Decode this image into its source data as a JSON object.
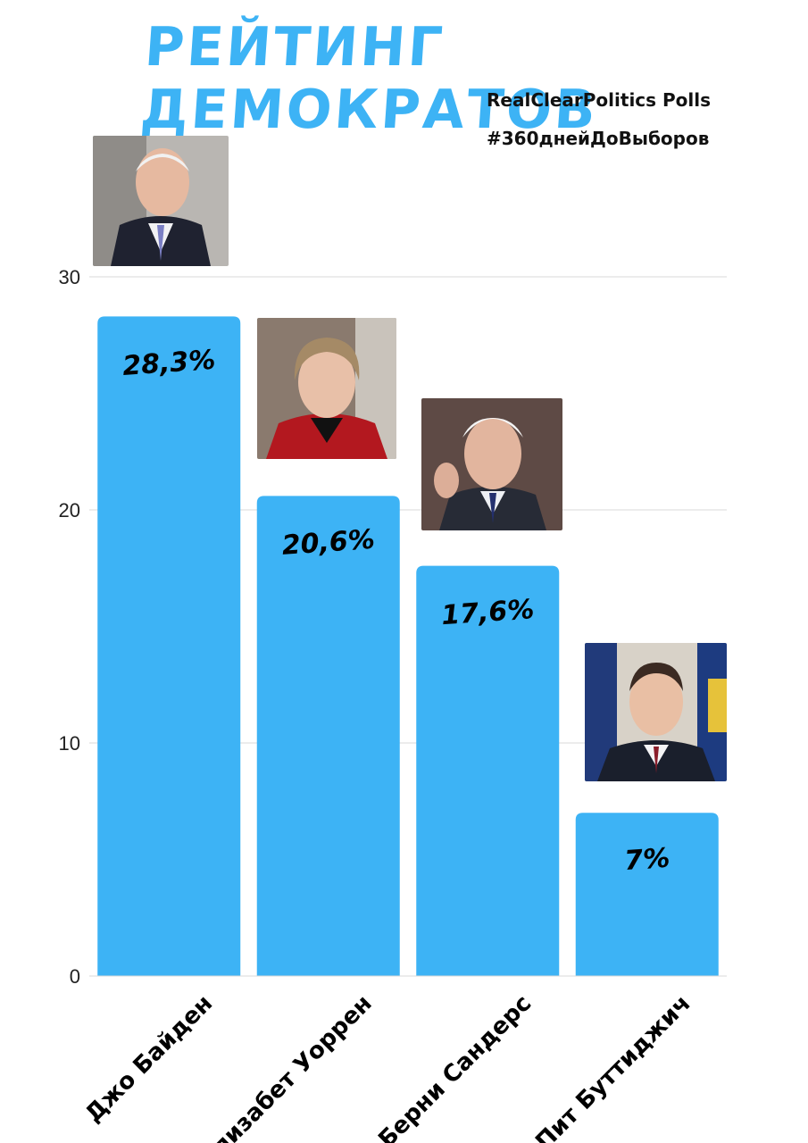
{
  "title": "РЕЙТИНГ ДЕМОКРАТОВ",
  "source": "RealClearPolitics Polls",
  "hashtag": "#360днейДоВыборов",
  "colors": {
    "bar": "#3db3f5",
    "title": "#3db3f5",
    "grid": "#d9d9d9"
  },
  "chart_data": {
    "type": "bar",
    "categories": [
      "Джо Байден",
      "Элизабет Уоррен",
      "Берни Сандерс",
      "Пит Буттиджич"
    ],
    "values": [
      28.3,
      20.6,
      17.6,
      7
    ],
    "value_labels": [
      "28,3%",
      "20,6%",
      "17,6%",
      "7%"
    ],
    "ylim": [
      0,
      30
    ],
    "yticks": [
      0,
      10,
      20,
      30
    ],
    "grid": true
  },
  "photos": [
    "portrait-biden",
    "portrait-warren",
    "portrait-sanders",
    "portrait-buttigieg"
  ]
}
